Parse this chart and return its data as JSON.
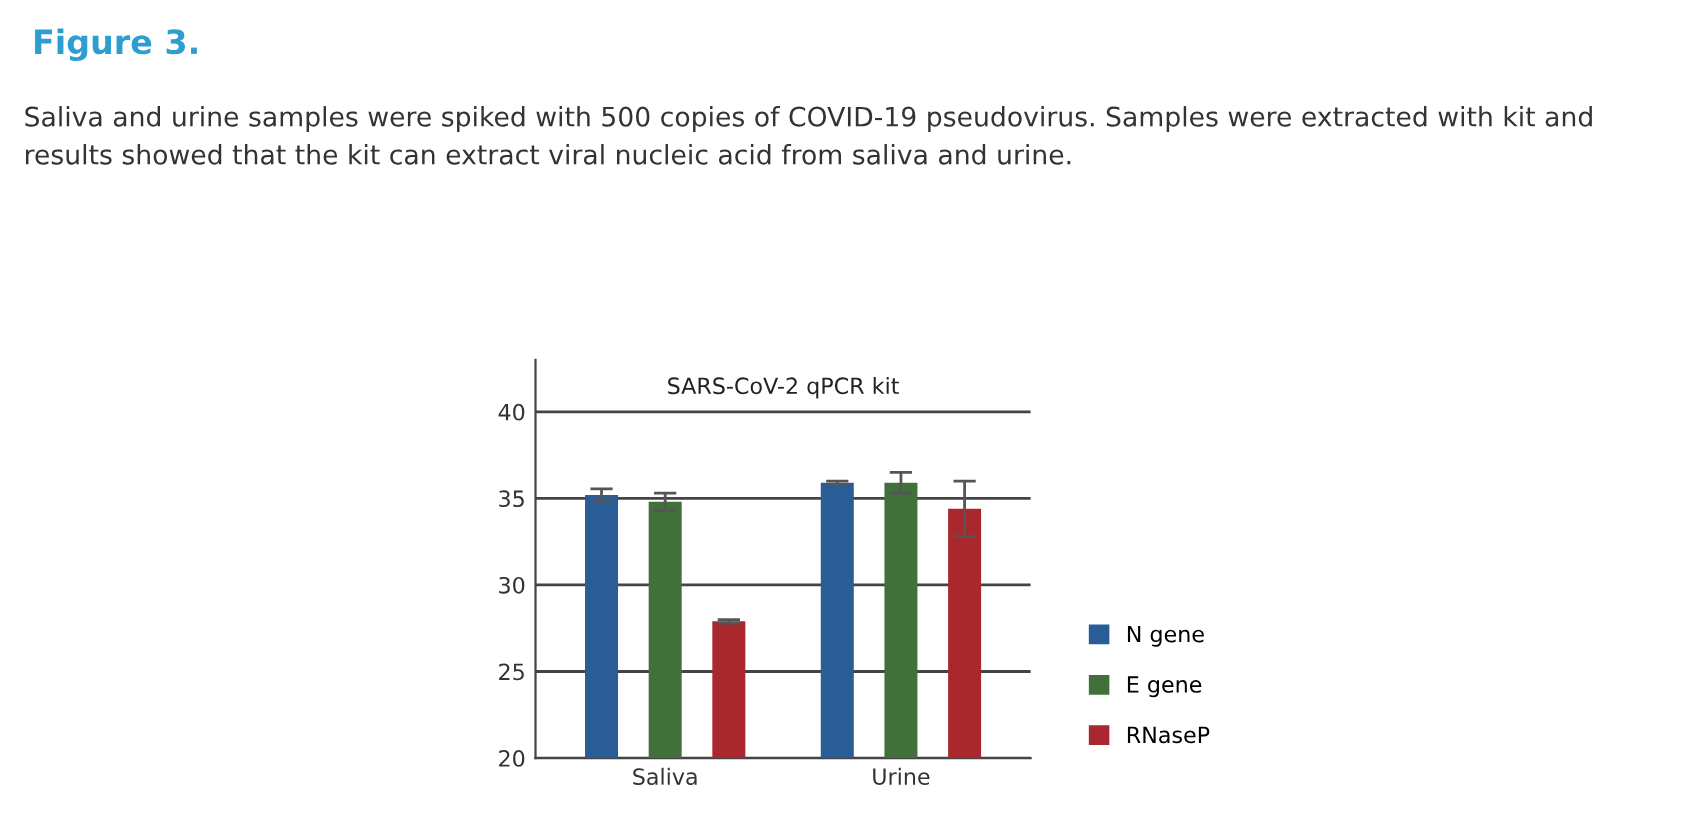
{
  "chart_data": {
    "type": "bar",
    "title": "Figure 3.",
    "subtitle": "Saliva and urine samples were spiked with 500 copies of COVID-19 pseudovirus. Samples were extracted with kit and results showed that the kit can extract viral nucleic acid from saliva and urine.",
    "annotations": [
      "SARS-CoV-2 qPCR kit"
    ],
    "categories": [
      "Saliva",
      "Urine"
    ],
    "series": [
      {
        "name": "N gene",
        "color": "#2a5c95",
        "values": [
          35.2,
          35.9
        ],
        "errors": [
          0.35,
          0.1
        ]
      },
      {
        "name": "E gene",
        "color": "#41703b",
        "values": [
          34.8,
          35.9
        ],
        "errors": [
          0.5,
          0.6
        ]
      },
      {
        "name": "RNaseP",
        "color": "#a8282e",
        "values": [
          27.9,
          34.4
        ],
        "errors": [
          0.1,
          1.6
        ]
      }
    ],
    "ylim": [
      20,
      43
    ],
    "yticks": [
      20,
      25,
      30,
      35,
      40
    ],
    "grid": "y",
    "legend": "right"
  }
}
